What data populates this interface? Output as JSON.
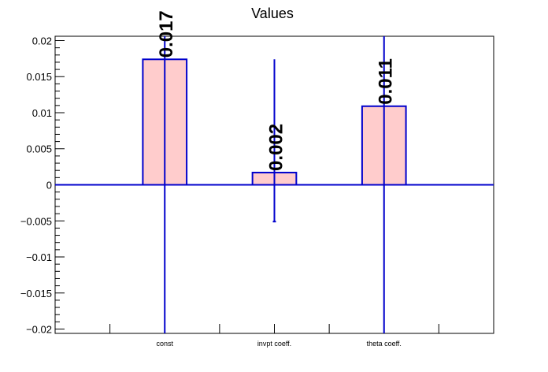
{
  "chart_data": {
    "type": "bar",
    "title": "Values",
    "categories": [
      "const",
      "invpt coeff.",
      "theta coeff."
    ],
    "values": [
      0.0174,
      0.0017,
      0.0109
    ],
    "value_labels": [
      "0.017",
      "0.002",
      "0.011"
    ],
    "error_low": [
      -0.0206,
      -0.0051,
      -0.0206
    ],
    "error_high": [
      0.0206,
      0.0174,
      0.0206
    ],
    "ylim": [
      -0.0206,
      0.0206
    ],
    "yticks": [
      -0.02,
      -0.015,
      -0.01,
      -0.005,
      0,
      0.005,
      0.01,
      0.015,
      0.02
    ],
    "ytick_labels": [
      "−0.02",
      "−0.015",
      "−0.01",
      "−0.005",
      "0",
      "0.005",
      "0.01",
      "0.015",
      "0.02"
    ],
    "xlabel": "",
    "ylabel": "",
    "grid": false,
    "colors": {
      "bar_fill": "#ffcccc",
      "bar_edge": "#0000cc",
      "axis": "#000000"
    }
  }
}
